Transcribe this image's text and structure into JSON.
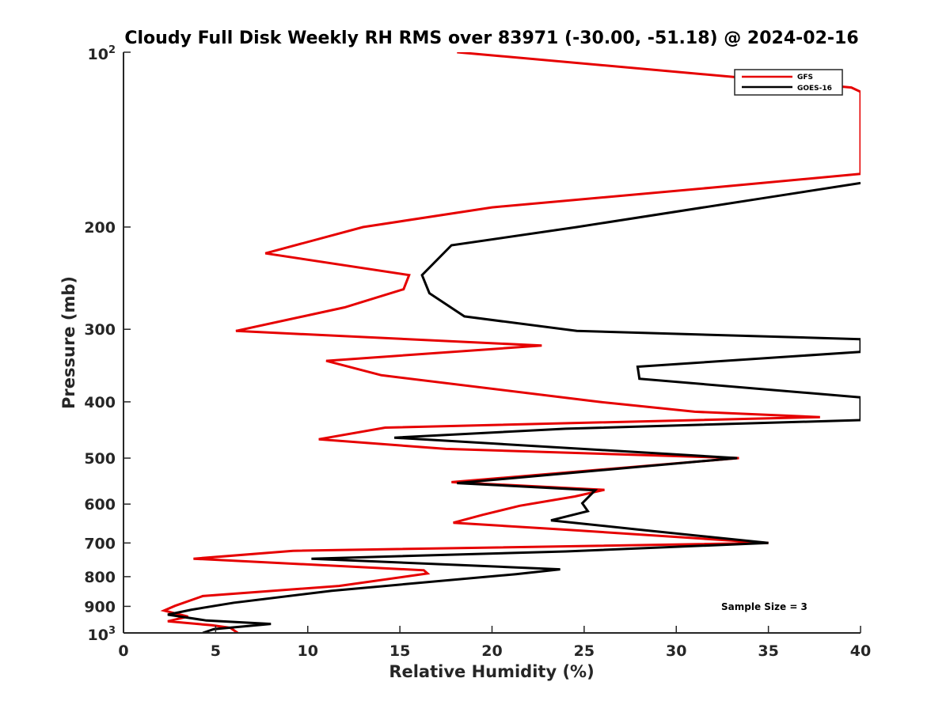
{
  "chart_data": {
    "type": "line",
    "title": "Cloudy Full Disk Weekly RH RMS over 83971 (-30.00, -51.18) @ 2024-02-16",
    "xlabel": "Relative Humidity (%)",
    "ylabel": "Pressure (mb)",
    "xlim": [
      0,
      40
    ],
    "ylim": [
      100,
      1000
    ],
    "y_scale": "log",
    "y_reversed": true,
    "grid": false,
    "legend_position": "top-right",
    "x_ticks": [
      "0",
      "5",
      "10",
      "15",
      "20",
      "25",
      "30",
      "35",
      "40"
    ],
    "y_ticks": [
      "200",
      "300",
      "400",
      "500",
      "600",
      "700",
      "800",
      "900"
    ],
    "y_tick_ends": {
      "top_base": "10",
      "top_exp": "2",
      "bottom_base": "10",
      "bottom_exp": "3"
    },
    "annotation": "Sample Size = 3",
    "series": [
      {
        "name": "GFS",
        "color": "#e60000",
        "points": [
          [
            18.1,
            100
          ],
          [
            39.5,
            115
          ],
          [
            40.0,
            117
          ],
          [
            40.0,
            162
          ],
          [
            32.0,
            171
          ],
          [
            20.0,
            185
          ],
          [
            13.0,
            200
          ],
          [
            7.7,
            222
          ],
          [
            15.5,
            242
          ],
          [
            15.2,
            256
          ],
          [
            12.0,
            275
          ],
          [
            6.1,
            302
          ],
          [
            22.7,
            320
          ],
          [
            11.0,
            340
          ],
          [
            14.0,
            360
          ],
          [
            25.8,
            400
          ],
          [
            31.0,
            416
          ],
          [
            37.8,
            425
          ],
          [
            14.2,
            443
          ],
          [
            10.6,
            464
          ],
          [
            17.5,
            482
          ],
          [
            33.4,
            500
          ],
          [
            17.8,
            550
          ],
          [
            26.1,
            567
          ],
          [
            24.5,
            582
          ],
          [
            21.5,
            604
          ],
          [
            19.5,
            626
          ],
          [
            17.9,
            646
          ],
          [
            24.0,
            664
          ],
          [
            35.0,
            700
          ],
          [
            9.2,
            722
          ],
          [
            3.8,
            745
          ],
          [
            16.3,
            780
          ],
          [
            16.5,
            790
          ],
          [
            11.7,
            830
          ],
          [
            4.3,
            864
          ],
          [
            2.8,
            898
          ],
          [
            2.2,
            915
          ],
          [
            3.5,
            937
          ],
          [
            2.4,
            955
          ],
          [
            4.8,
            970
          ],
          [
            5.8,
            980
          ],
          [
            6.2,
            1000
          ]
        ]
      },
      {
        "name": "GOES-16",
        "color": "#000000",
        "points": [
          [
            40.0,
            168
          ],
          [
            34.9,
            178
          ],
          [
            24.6,
            200
          ],
          [
            17.8,
            215
          ],
          [
            16.2,
            242
          ],
          [
            16.6,
            260
          ],
          [
            18.5,
            285
          ],
          [
            24.6,
            302
          ],
          [
            40.0,
            312
          ],
          [
            40.0,
            328
          ],
          [
            27.9,
            348
          ],
          [
            28.0,
            365
          ],
          [
            40.0,
            393
          ],
          [
            40.0,
            430
          ],
          [
            24.0,
            445
          ],
          [
            14.7,
            461
          ],
          [
            33.3,
            500
          ],
          [
            18.1,
            552
          ],
          [
            25.6,
            568
          ],
          [
            24.9,
            598
          ],
          [
            25.2,
            617
          ],
          [
            23.2,
            640
          ],
          [
            28.0,
            664
          ],
          [
            35.0,
            700
          ],
          [
            24.0,
            724
          ],
          [
            10.2,
            745
          ],
          [
            23.7,
            777
          ],
          [
            21.3,
            792
          ],
          [
            11.3,
            846
          ],
          [
            6.0,
            887
          ],
          [
            3.7,
            912
          ],
          [
            2.4,
            930
          ],
          [
            4.5,
            952
          ],
          [
            8.0,
            965
          ],
          [
            4.9,
            985
          ],
          [
            4.3,
            1000
          ]
        ]
      }
    ]
  }
}
